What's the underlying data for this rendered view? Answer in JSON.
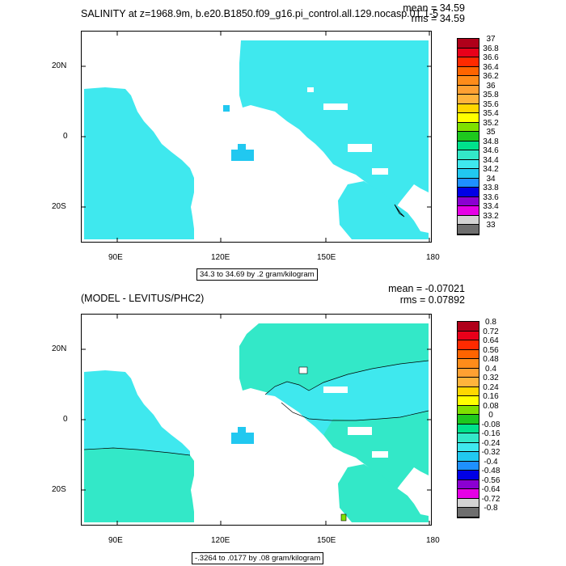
{
  "colors": {
    "sea": "#ffffff",
    "land": "#ffffff",
    "cyan_light": "#3fe8ee",
    "cyan_mid": "#21c8f0",
    "teal": "#33e8c8",
    "blue": "#1e90ff",
    "dark": "#000000"
  },
  "top_panel": {
    "title": "SALINITY at z=1968.9m, b.e20.B1850.f09_g16.pi_control.all.129.nocasp.01.1-5",
    "stat_mean": "mean = 34.59",
    "stat_rms": "rms = 34.59",
    "info": "34.3 to 34.69 by .2 gram/kilogram",
    "x_ticks": [
      "90E",
      "120E",
      "150E",
      "180"
    ],
    "y_ticks": [
      "20N",
      "0",
      "20S"
    ],
    "legend_labels": [
      "37",
      "36.8",
      "36.6",
      "36.4",
      "36.2",
      "36",
      "35.8",
      "35.6",
      "35.4",
      "35.2",
      "35",
      "34.8",
      "34.6",
      "34.4",
      "34.2",
      "34",
      "33.8",
      "33.6",
      "33.4",
      "33.2",
      "33"
    ],
    "legend_colors": [
      "#b0001a",
      "#e8001a",
      "#ff2a00",
      "#ff6400",
      "#ff8c1a",
      "#ffa032",
      "#ffb43c",
      "#ffd700",
      "#ffff00",
      "#7fe000",
      "#1ec81e",
      "#00e28c",
      "#33e8c8",
      "#3fe8ee",
      "#21c8f0",
      "#1e90ff",
      "#0000e6",
      "#8b00d2",
      "#e600e6",
      "#d3d3d3",
      "#6e6e6e"
    ]
  },
  "bottom_panel": {
    "title": "(MODEL - LEVITUS/PHC2)",
    "stat_mean": "mean = -0.07021",
    "stat_rms": "rms = 0.07892",
    "info": "-.3264 to .0177 by .08 gram/kilogram",
    "x_ticks": [
      "90E",
      "120E",
      "150E",
      "180"
    ],
    "y_ticks": [
      "20N",
      "0",
      "20S"
    ],
    "legend_labels": [
      "0.8",
      "0.72",
      "0.64",
      "0.56",
      "0.48",
      "0.4",
      "0.32",
      "0.24",
      "0.16",
      "0.08",
      "0",
      "-0.08",
      "-0.16",
      "-0.24",
      "-0.32",
      "-0.4",
      "-0.48",
      "-0.56",
      "-0.64",
      "-0.72",
      "-0.8"
    ],
    "legend_colors": [
      "#b0001a",
      "#e8001a",
      "#ff2a00",
      "#ff6400",
      "#ff8c1a",
      "#ffa032",
      "#ffb43c",
      "#ffd700",
      "#ffff00",
      "#7fe000",
      "#1ec81e",
      "#00e28c",
      "#33e8c8",
      "#3fe8ee",
      "#21c8f0",
      "#1e90ff",
      "#0000e6",
      "#8b00d2",
      "#e600e6",
      "#d3d3d3",
      "#6e6e6e"
    ]
  }
}
